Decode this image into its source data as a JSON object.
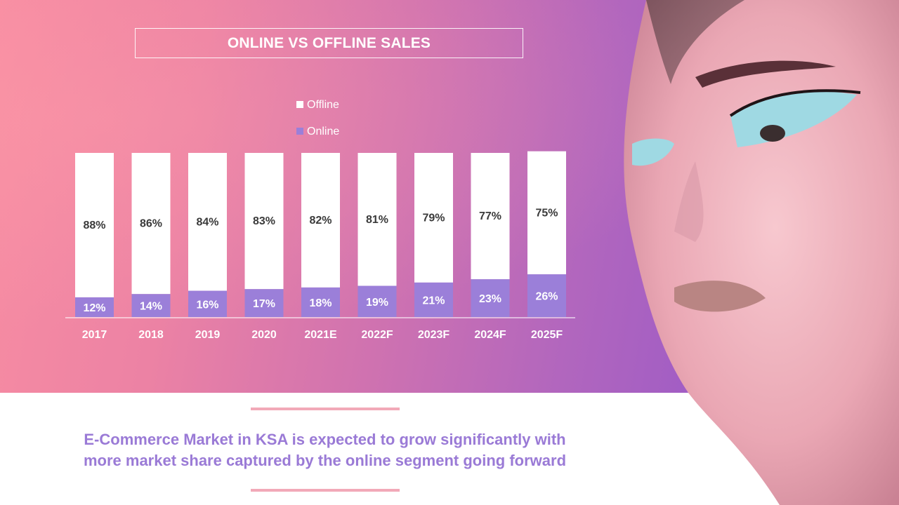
{
  "slide": {
    "title": "ONLINE VS OFFLINE SALES",
    "caption_line1": "E-Commerce Market in KSA is expected to grow significantly with",
    "caption_line2": "more market share captured by the online segment going forward"
  },
  "colors": {
    "offline": "#ffffff",
    "online": "#9b7fd9",
    "caption": "#9a7ad6",
    "rule": "#f2a9b8"
  },
  "chart_data": {
    "type": "bar",
    "stacked": true,
    "title": "ONLINE VS OFFLINE SALES",
    "categories": [
      "2017",
      "2018",
      "2019",
      "2020",
      "2021E",
      "2022F",
      "2023F",
      "2024F",
      "2025F"
    ],
    "series": [
      {
        "name": "Online",
        "values": [
          12,
          14,
          16,
          17,
          18,
          19,
          21,
          23,
          26
        ],
        "labels": [
          "12%",
          "14%",
          "16%",
          "17%",
          "18%",
          "19%",
          "21%",
          "23%",
          "26%"
        ]
      },
      {
        "name": "Offline",
        "values": [
          88,
          86,
          84,
          83,
          82,
          81,
          79,
          77,
          75
        ],
        "labels": [
          "88%",
          "86%",
          "84%",
          "83%",
          "82%",
          "81%",
          "79%",
          "77%",
          "75%"
        ]
      }
    ],
    "ylim": [
      0,
      100
    ],
    "legend": [
      "Offline",
      "Online"
    ],
    "legend_position": "top",
    "grid": false
  }
}
